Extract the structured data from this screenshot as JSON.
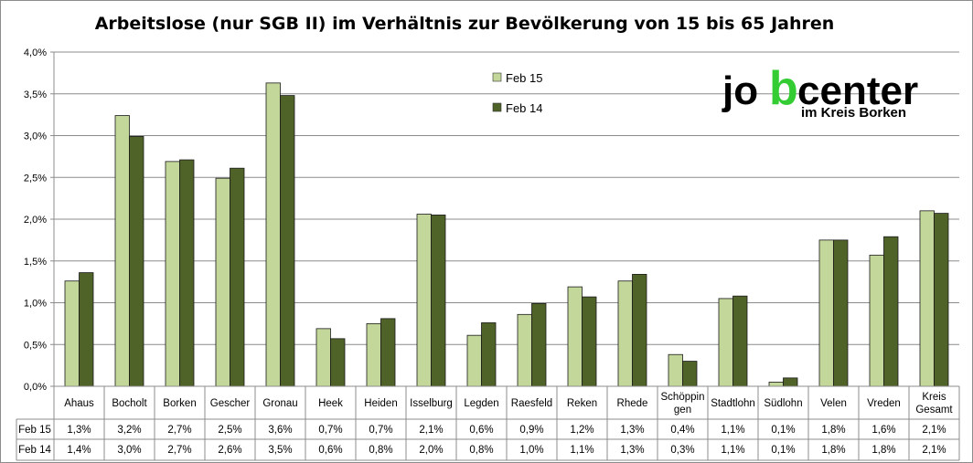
{
  "chart_data": {
    "type": "bar",
    "title": "Arbeitslose (nur SGB II) im Verhältnis zur Bevölkerung von 15 bis 65 Jahren",
    "categories": [
      [
        "Ahaus"
      ],
      [
        "Bocholt"
      ],
      [
        "Borken"
      ],
      [
        "Gescher"
      ],
      [
        "Gronau"
      ],
      [
        "Heek"
      ],
      [
        "Heiden"
      ],
      [
        "Isselburg"
      ],
      [
        "Legden"
      ],
      [
        "Raesfeld"
      ],
      [
        "Reken"
      ],
      [
        "Rhede"
      ],
      [
        "Schöppin",
        "gen"
      ],
      [
        "Stadtlohn"
      ],
      [
        "Südlohn"
      ],
      [
        "Velen"
      ],
      [
        "Vreden"
      ],
      [
        "Kreis",
        "Gesamt"
      ]
    ],
    "series": [
      {
        "name": "Feb 15",
        "color": "#c4d79b",
        "values": [
          1.26,
          3.24,
          2.69,
          2.49,
          3.63,
          0.69,
          0.75,
          2.06,
          0.61,
          0.86,
          1.19,
          1.26,
          0.38,
          1.05,
          0.05,
          1.75,
          1.57,
          2.1
        ],
        "labels": [
          "1,3%",
          "3,2%",
          "2,7%",
          "2,5%",
          "3,6%",
          "0,7%",
          "0,7%",
          "2,1%",
          "0,6%",
          "0,9%",
          "1,2%",
          "1,3%",
          "0,4%",
          "1,1%",
          "0,1%",
          "1,8%",
          "1,6%",
          "2,1%"
        ]
      },
      {
        "name": "Feb 14",
        "color": "#4f6228",
        "values": [
          1.36,
          2.99,
          2.71,
          2.61,
          3.48,
          0.57,
          0.81,
          2.05,
          0.76,
          0.99,
          1.07,
          1.34,
          0.3,
          1.08,
          0.1,
          1.75,
          1.79,
          2.07
        ],
        "labels": [
          "1,4%",
          "3,0%",
          "2,7%",
          "2,6%",
          "3,5%",
          "0,6%",
          "0,8%",
          "2,0%",
          "0,8%",
          "1,0%",
          "1,1%",
          "1,3%",
          "0,3%",
          "1,1%",
          "0,1%",
          "1,8%",
          "1,8%",
          "2,1%"
        ]
      }
    ],
    "ylim": [
      0,
      4.0
    ],
    "yticks": [
      "0,0%",
      "0,5%",
      "1,0%",
      "1,5%",
      "2,0%",
      "2,5%",
      "3,0%",
      "3,5%",
      "4,0%"
    ],
    "grid": true,
    "legend": "top-center",
    "data_table": true
  },
  "logo": {
    "text_a": "jo",
    "text_b": "b",
    "text_c": "center",
    "sub": "im Kreis Borken",
    "color_main": "#000000",
    "color_accent": "#33cc33"
  }
}
